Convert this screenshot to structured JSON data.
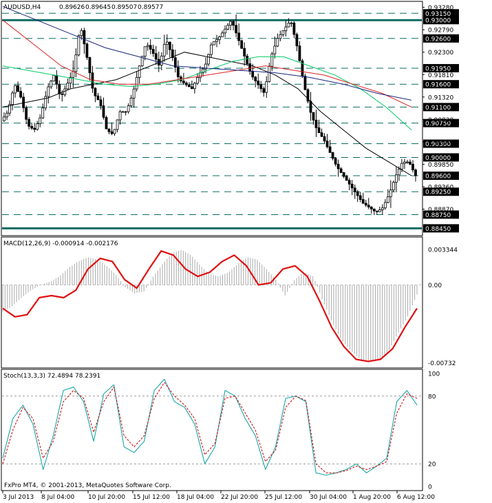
{
  "chart_data": [
    {
      "type": "candlestick",
      "symbol": "AUDUSD,H4",
      "header_values": [
        "0.89626",
        "0.89645",
        "0.89507",
        "0.89577"
      ],
      "ylim": [
        0.8832,
        0.9338
      ],
      "y_tick_labels": [
        "0.93280",
        "0.92790",
        "0.92300",
        "0.91810",
        "0.91320",
        "0.90830",
        "0.90340",
        "0.89850",
        "0.89360",
        "0.88870"
      ],
      "y_tick_values": [
        0.9328,
        0.9279,
        0.923,
        0.9181,
        0.9132,
        0.9083,
        0.9034,
        0.8985,
        0.8936,
        0.8887
      ],
      "level_lines": [
        {
          "value": 0.9315,
          "label": "0.93150",
          "style": "dashed"
        },
        {
          "value": 0.93,
          "label": "0.93000",
          "style": "solid-thick"
        },
        {
          "value": 0.926,
          "label": "0.92600",
          "style": "dashed"
        },
        {
          "value": 0.9195,
          "label": "0.91950",
          "style": "dashed"
        },
        {
          "value": 0.916,
          "label": "0.91600",
          "style": "dashed"
        },
        {
          "value": 0.911,
          "label": "0.91100",
          "style": "dashed"
        },
        {
          "value": 0.9075,
          "label": "0.90750",
          "style": "dashed"
        },
        {
          "value": 0.903,
          "label": "0.90300",
          "style": "dashed"
        },
        {
          "value": 0.9,
          "label": "0.90000",
          "style": "dashed"
        },
        {
          "value": 0.896,
          "label": "0.89600",
          "style": "dashed"
        },
        {
          "value": 0.8925,
          "label": "0.89250",
          "style": "dashed"
        },
        {
          "value": 0.8875,
          "label": "0.88750",
          "style": "dashed"
        },
        {
          "value": 0.8845,
          "label": "0.88450",
          "style": "solid-thick"
        }
      ],
      "price_path": [
        0.908,
        0.91,
        0.916,
        0.913,
        0.907,
        0.906,
        0.909,
        0.915,
        0.918,
        0.913,
        0.916,
        0.919,
        0.929,
        0.922,
        0.914,
        0.912,
        0.906,
        0.905,
        0.91,
        0.91,
        0.914,
        0.92,
        0.925,
        0.923,
        0.92,
        0.926,
        0.922,
        0.917,
        0.916,
        0.915,
        0.918,
        0.92,
        0.925,
        0.926,
        0.928,
        0.93,
        0.926,
        0.922,
        0.918,
        0.916,
        0.914,
        0.922,
        0.926,
        0.928,
        0.93,
        0.924,
        0.916,
        0.91,
        0.906,
        0.904,
        0.901,
        0.898,
        0.896,
        0.894,
        0.892,
        0.89,
        0.889,
        0.888,
        0.889,
        0.892,
        0.896,
        0.899,
        0.899,
        0.896
      ],
      "moving_averages": [
        {
          "color": "#000000",
          "values": [
            0.911,
            0.912,
            0.913,
            0.915,
            0.916,
            0.917,
            0.919,
            0.921,
            0.923,
            0.922,
            0.921,
            0.92,
            0.918,
            0.915,
            0.91,
            0.906,
            0.902,
            0.899,
            0.896
          ]
        },
        {
          "color": "#00cc66",
          "values": [
            0.92,
            0.919,
            0.918,
            0.917,
            0.916,
            0.9155,
            0.916,
            0.917,
            0.919,
            0.921,
            0.922,
            0.922,
            0.92,
            0.918,
            0.915,
            0.911,
            0.906
          ]
        },
        {
          "color": "#dd2222",
          "values": [
            0.93,
            0.925,
            0.92,
            0.917,
            0.916,
            0.916,
            0.917,
            0.918,
            0.919,
            0.92,
            0.919,
            0.918,
            0.916,
            0.914,
            0.911
          ]
        },
        {
          "color": "#1a237e",
          "values": [
            0.933,
            0.93,
            0.927,
            0.924,
            0.922,
            0.92,
            0.9195,
            0.919,
            0.9185,
            0.9175,
            0.916,
            0.914,
            0.9125
          ]
        }
      ]
    },
    {
      "type": "macd",
      "label": "MACD(12,26,9) -0.000914 -0.002176",
      "ylim": [
        -0.00755,
        0.0036
      ],
      "y_tick_labels": [
        "0.003344",
        "0.00",
        "-0.00732"
      ],
      "y_tick_values": [
        0.003344,
        0,
        -0.00732
      ],
      "histogram": [
        -0.0025,
        -0.002,
        -0.0012,
        -0.0005,
        0.0,
        0.0003,
        0.0008,
        0.0016,
        0.0022,
        0.0026,
        0.0024,
        0.0018,
        0.001,
        -0.0002,
        -0.0008,
        -0.0006,
        0.0008,
        0.002,
        0.003,
        0.0033,
        0.0028,
        0.0018,
        0.001,
        0.0008,
        0.0012,
        0.002,
        0.0026,
        0.0024,
        0.0015,
        0.0005,
        -0.001,
        0.0005,
        0.0012,
        0.0008,
        -0.0015,
        -0.0035,
        -0.0052,
        -0.0062,
        -0.007,
        -0.0072,
        -0.007,
        -0.0062,
        -0.0045,
        -0.003,
        -0.0009
      ],
      "signal": [
        -0.0022,
        -0.003,
        -0.0028,
        -0.0012,
        -0.001,
        -0.0012,
        -0.0005,
        0.0015,
        0.0025,
        0.0022,
        0.0005,
        -0.0003,
        0.0015,
        0.0032,
        0.0028,
        0.0015,
        0.0008,
        0.0012,
        0.0022,
        0.0028,
        0.0018,
        0.0,
        0.0002,
        0.0015,
        0.0018,
        0.0008,
        -0.0015,
        -0.004,
        -0.0058,
        -0.007,
        -0.0072,
        -0.007,
        -0.006,
        -0.004,
        -0.0022
      ]
    },
    {
      "type": "stochastic",
      "label": "Stoch(13,3,3) 72.4894 78.2391",
      "ylim": [
        0,
        100
      ],
      "y_tick_labels": [
        "100",
        "80",
        "20",
        "0"
      ],
      "y_tick_values": [
        100,
        80,
        20,
        0
      ],
      "main": [
        25,
        60,
        72,
        55,
        15,
        45,
        85,
        88,
        75,
        40,
        82,
        90,
        35,
        30,
        40,
        85,
        95,
        75,
        70,
        55,
        20,
        35,
        85,
        80,
        60,
        45,
        15,
        35,
        78,
        80,
        75,
        12,
        10,
        12,
        15,
        20,
        12,
        18,
        25,
        75,
        85,
        72
      ],
      "signal": [
        20,
        50,
        70,
        60,
        25,
        40,
        75,
        85,
        78,
        48,
        75,
        88,
        45,
        35,
        45,
        78,
        92,
        80,
        72,
        60,
        28,
        38,
        78,
        80,
        65,
        50,
        22,
        32,
        70,
        80,
        76,
        20,
        12,
        12,
        14,
        18,
        15,
        18,
        22,
        65,
        82,
        78
      ]
    }
  ],
  "x_axis_labels": [
    "3 Jul 2013",
    "8 Jul 04:00",
    "10 Jul 20:00",
    "15 Jul 12:00",
    "18 Jul 04:00",
    "22 Jul 20:00",
    "25 Jul 12:00",
    "30 Jul 04:00",
    "1 Aug 20:00",
    "6 Aug 12:00"
  ],
  "copyright": "FxPro MT4, © 2001-2013, MetaQuotes Software Corp."
}
